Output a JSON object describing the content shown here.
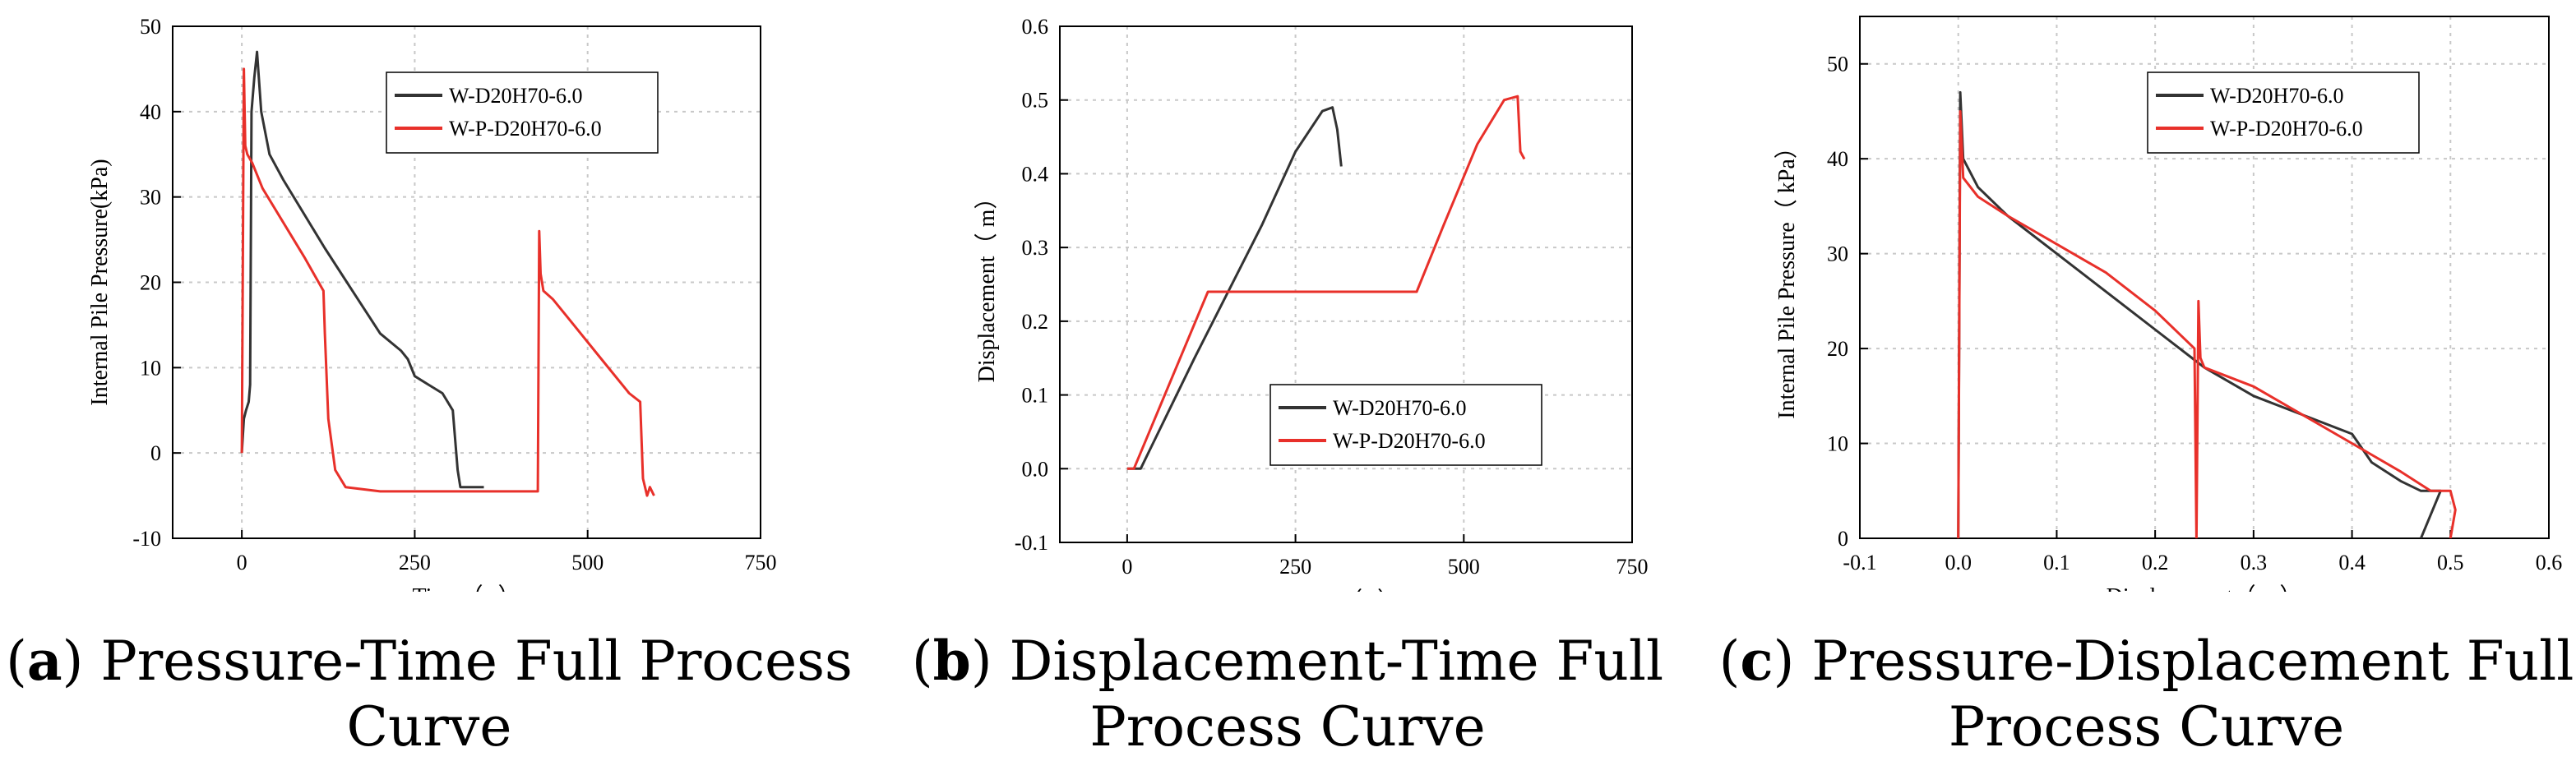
{
  "panels": [
    {
      "caption_letter": "a",
      "caption_text": ") Pressure-Time Full Process Curve",
      "caption_paren": "(",
      "chart_data": {
        "type": "line",
        "title": "",
        "xlabel": "Time（ s）",
        "ylabel": "Internal Pile Pressure(kPa)",
        "xlim": [
          -100,
          750
        ],
        "ylim": [
          -10,
          50
        ],
        "xticks": [
          0,
          250,
          500,
          750
        ],
        "yticks": [
          -10,
          0,
          10,
          20,
          30,
          40,
          50
        ],
        "grid": true,
        "legend": "top-right",
        "series": [
          {
            "name": "W-D20H70-6.0",
            "color": "#333333",
            "x": [
              0,
              3,
              6,
              10,
              12,
              14,
              18,
              22,
              28,
              40,
              60,
              90,
              120,
              160,
              200,
              230,
              240,
              250,
              270,
              290,
              305,
              312,
              316,
              320,
              330,
              350
            ],
            "y": [
              0,
              4,
              5,
              6,
              8,
              40,
              44,
              47,
              40,
              35,
              32,
              28,
              24,
              19,
              14,
              12,
              11,
              9,
              8,
              7,
              5,
              -2,
              -4,
              -4,
              -4,
              -4
            ]
          },
          {
            "name": "W-P-D20H70-6.0",
            "color": "#e8302a",
            "x": [
              0,
              3,
              5,
              8,
              15,
              30,
              60,
              90,
              118,
              120,
              125,
              135,
              150,
              200,
              300,
              428,
              430,
              432,
              436,
              450,
              480,
              520,
              560,
              576,
              580,
              586,
              590,
              596
            ],
            "y": [
              0,
              45,
              36,
              35,
              34,
              31,
              27,
              23,
              19,
              14,
              4,
              -2,
              -4,
              -4.5,
              -4.5,
              -4.5,
              26,
              21,
              19,
              18,
              15,
              11,
              7,
              6,
              -3,
              -5,
              -4,
              -5
            ]
          }
        ]
      }
    },
    {
      "caption_letter": "b",
      "caption_text": ") Displacement-Time Full Process Curve",
      "caption_paren": "(",
      "chart_data": {
        "type": "line",
        "title": "",
        "xlabel": "Time（ s）",
        "ylabel": "Displacement（ m）",
        "xlim": [
          -100,
          750
        ],
        "ylim": [
          -0.1,
          0.6
        ],
        "xticks": [
          0,
          250,
          500,
          750
        ],
        "yticks": [
          -0.1,
          0.0,
          0.1,
          0.2,
          0.3,
          0.4,
          0.5,
          0.6
        ],
        "grid": true,
        "legend": "lower-right",
        "series": [
          {
            "name": "W-D20H70-6.0",
            "color": "#333333",
            "x": [
              0,
              20,
              100,
              200,
              250,
              290,
              305,
              312,
              318
            ],
            "y": [
              0,
              0,
              0.15,
              0.33,
              0.43,
              0.485,
              0.49,
              0.46,
              0.41
            ]
          },
          {
            "name": "W-P-D20H70-6.0",
            "color": "#e8302a",
            "x": [
              0,
              10,
              120,
              200,
              300,
              430,
              470,
              520,
              560,
              580,
              584,
              590
            ],
            "y": [
              0,
              0,
              0.24,
              0.24,
              0.24,
              0.24,
              0.33,
              0.44,
              0.5,
              0.505,
              0.43,
              0.42
            ]
          }
        ]
      }
    },
    {
      "caption_letter": "c",
      "caption_text": ") Pressure-Displacement Full Process Curve",
      "caption_paren": "(",
      "chart_data": {
        "type": "line",
        "title": "",
        "xlabel": "Displacement（ m）",
        "ylabel": "Internal Pile Pressure（ kPa）",
        "xlim": [
          -0.1,
          0.6
        ],
        "ylim": [
          0,
          55
        ],
        "xticks": [
          -0.1,
          0.0,
          0.1,
          0.2,
          0.3,
          0.4,
          0.5,
          0.6
        ],
        "yticks": [
          0,
          10,
          20,
          30,
          40,
          50
        ],
        "grid": true,
        "legend": "top-center",
        "series": [
          {
            "name": "W-D20H70-6.0",
            "color": "#333333",
            "x": [
              0,
              0.002,
              0.005,
              0.02,
              0.05,
              0.1,
              0.15,
              0.2,
              0.25,
              0.3,
              0.35,
              0.4,
              0.42,
              0.45,
              0.47,
              0.48,
              0.49,
              0.47
            ],
            "y": [
              0,
              47,
              40,
              37,
              34,
              30,
              26,
              22,
              18,
              15,
              13,
              11,
              8,
              6,
              5,
              5,
              5,
              0
            ]
          },
          {
            "name": "W-P-D20H70-6.0",
            "color": "#e8302a",
            "x": [
              0,
              0.002,
              0.005,
              0.02,
              0.05,
              0.1,
              0.15,
              0.2,
              0.24,
              0.242,
              0.244,
              0.246,
              0.25,
              0.3,
              0.35,
              0.4,
              0.45,
              0.48,
              0.5,
              0.505,
              0.5
            ],
            "y": [
              0,
              45,
              38,
              36,
              34,
              31,
              28,
              24,
              20,
              0,
              25,
              19,
              18,
              16,
              13,
              10,
              7,
              5,
              5,
              3,
              0
            ]
          }
        ]
      }
    }
  ]
}
